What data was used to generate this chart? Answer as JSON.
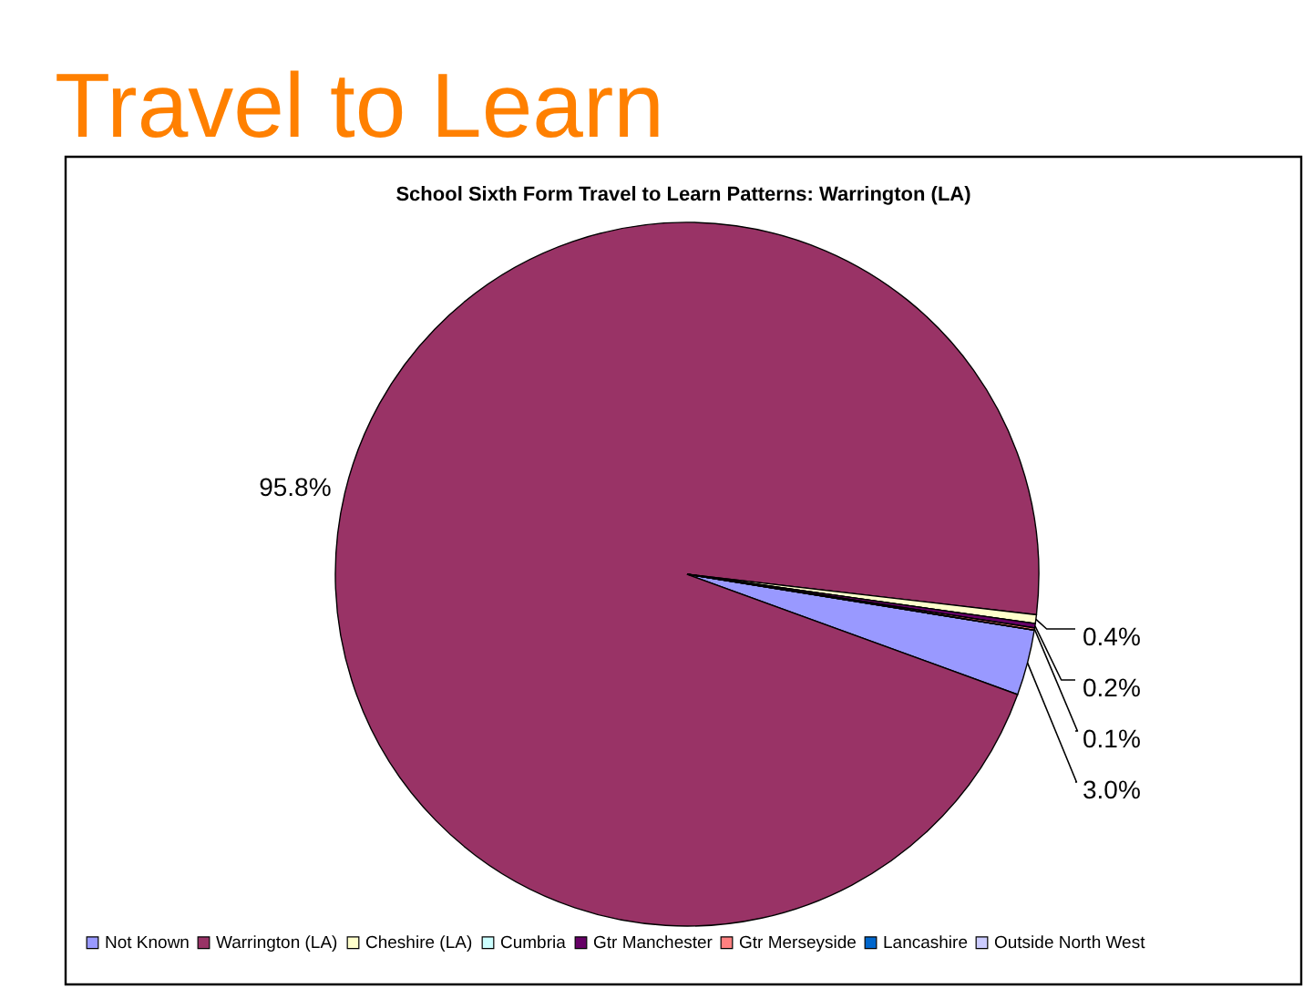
{
  "chart_data": {
    "type": "pie",
    "title": "Travel to Learn",
    "subtitle": "School Sixth Form Travel to Learn Patterns: Warrington (LA)",
    "categories": [
      "Not Known",
      "Warrington (LA)",
      "Cheshire (LA)",
      "Cumbria",
      "Gtr Manchester",
      "Gtr Merseyside",
      "Lancashire",
      "Outside North West"
    ],
    "values": [
      3.0,
      95.8,
      0.4,
      0,
      0.2,
      0.1,
      0,
      0
    ],
    "colors": [
      "#9999ff",
      "#993366",
      "#ffffcc",
      "#ccffff",
      "#660066",
      "#ff8080",
      "#0066cc",
      "#ccccff"
    ],
    "value_labels": [
      "3.0%",
      "95.8%",
      "0.4%",
      null,
      "0.2%",
      "0.1%",
      null,
      null
    ],
    "legend": "bottom"
  }
}
